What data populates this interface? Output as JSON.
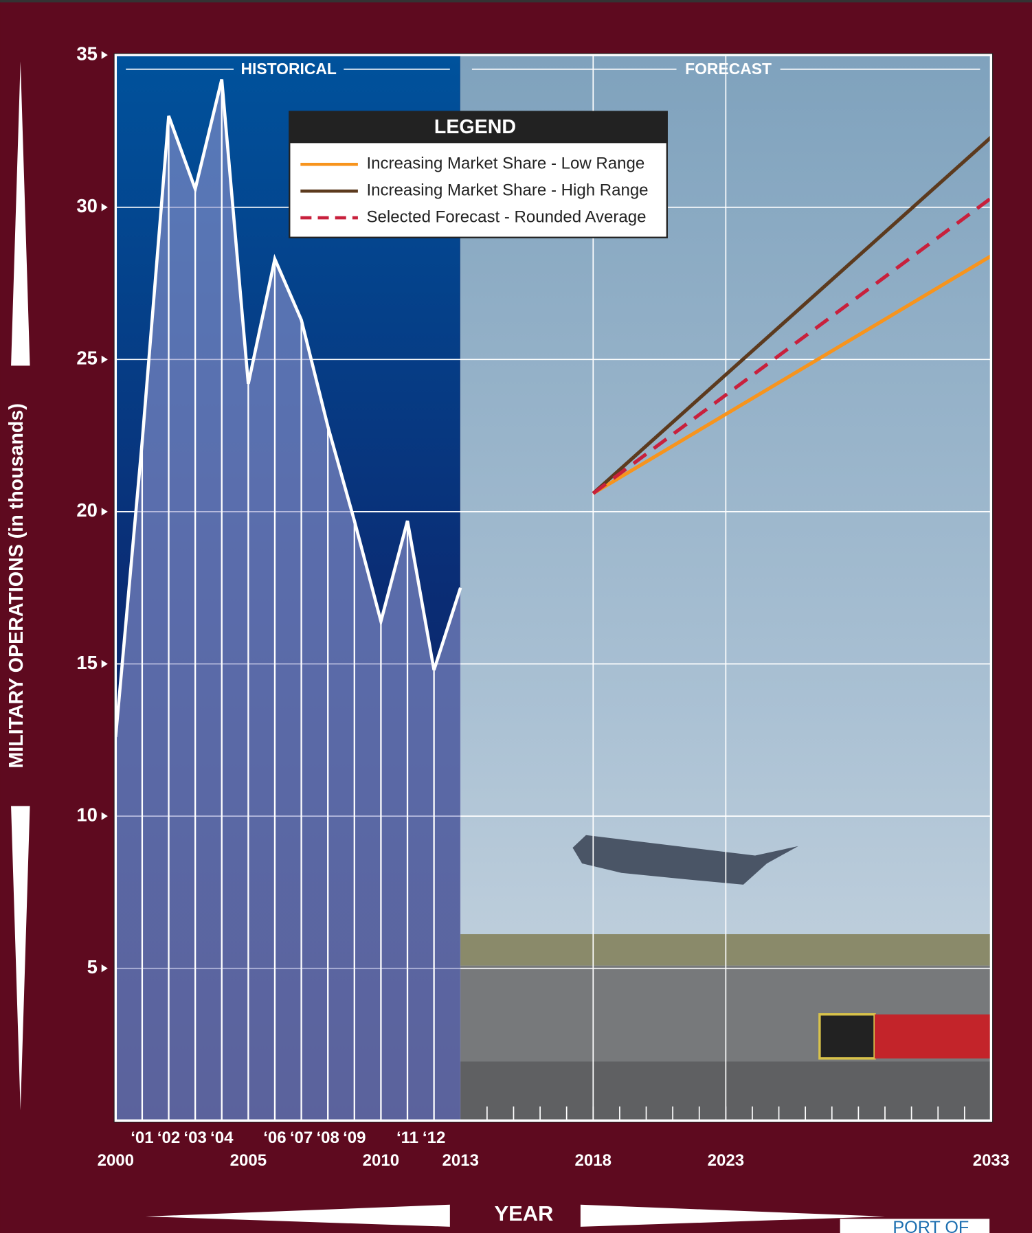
{
  "chart_data": {
    "type": "line",
    "y_axis_label": "MILITARY OPERATIONS (in thousands)",
    "x_axis_label": "YEAR",
    "section_labels": [
      "HISTORICAL",
      "FORECAST"
    ],
    "legend_title": "LEGEND",
    "logo_text": "PORT OF",
    "xlim": [
      2000,
      2033
    ],
    "ylim": [
      0,
      35
    ],
    "xticks": [
      2000,
      2005,
      2010,
      2013,
      2018,
      2023,
      2033
    ],
    "xticks_short": [
      {
        "value": 2001,
        "label": "‘01"
      },
      {
        "value": 2002,
        "label": "‘02"
      },
      {
        "value": 2003,
        "label": "‘03"
      },
      {
        "value": 2004,
        "label": "‘04"
      },
      {
        "value": 2006,
        "label": "‘06"
      },
      {
        "value": 2007,
        "label": "‘07"
      },
      {
        "value": 2008,
        "label": "‘08"
      },
      {
        "value": 2009,
        "label": "‘09"
      },
      {
        "value": 2011,
        "label": "‘11"
      },
      {
        "value": 2012,
        "label": "‘12"
      }
    ],
    "yticks": [
      5,
      10,
      15,
      20,
      25,
      30,
      35
    ],
    "grid": true,
    "series": [
      {
        "name": null,
        "color": "#ffffff",
        "area": true,
        "x": [
          2000,
          2001,
          2002,
          2003,
          2004,
          2005,
          2006,
          2007,
          2008,
          2009,
          2010,
          2011,
          2012,
          2013
        ],
        "values": [
          12.6,
          22.3,
          33.0,
          30.6,
          34.2,
          24.2,
          28.3,
          26.3,
          22.8,
          19.7,
          16.4,
          19.7,
          14.8,
          17.5
        ]
      },
      {
        "name": "Increasing Market Share - Low Range",
        "color": "#f7941d",
        "x": [
          2018,
          2033
        ],
        "values": [
          20.6,
          28.4
        ]
      },
      {
        "name": "Increasing Market Share - High Range",
        "color": "#5c3a1e",
        "x": [
          2018,
          2033
        ],
        "values": [
          20.6,
          32.3
        ]
      },
      {
        "name": "Selected Forecast - Rounded Average",
        "color": "#c8203c",
        "dashed": true,
        "x": [
          2018,
          2033
        ],
        "values": [
          20.6,
          30.3
        ]
      }
    ]
  }
}
